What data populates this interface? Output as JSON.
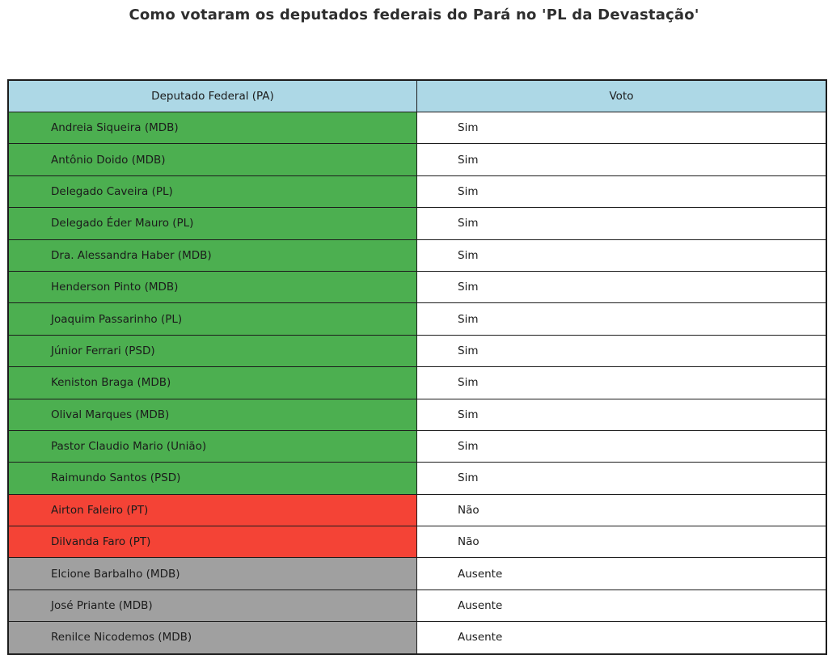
{
  "title": "Como votaram os deputados federais do Pará no 'PL da Devastação'",
  "chart_data": {
    "type": "table",
    "columns": [
      "Deputado Federal (PA)",
      "Voto"
    ],
    "rows": [
      {
        "deputy": "Andreia Siqueira (MDB)",
        "vote": "Sim",
        "status": "sim"
      },
      {
        "deputy": "Antônio Doido (MDB)",
        "vote": "Sim",
        "status": "sim"
      },
      {
        "deputy": "Delegado Caveira (PL)",
        "vote": "Sim",
        "status": "sim"
      },
      {
        "deputy": "Delegado Éder Mauro (PL)",
        "vote": "Sim",
        "status": "sim"
      },
      {
        "deputy": "Dra. Alessandra Haber (MDB)",
        "vote": "Sim",
        "status": "sim"
      },
      {
        "deputy": "Henderson Pinto (MDB)",
        "vote": "Sim",
        "status": "sim"
      },
      {
        "deputy": "Joaquim Passarinho (PL)",
        "vote": "Sim",
        "status": "sim"
      },
      {
        "deputy": "Júnior Ferrari (PSD)",
        "vote": "Sim",
        "status": "sim"
      },
      {
        "deputy": "Keniston Braga (MDB)",
        "vote": "Sim",
        "status": "sim"
      },
      {
        "deputy": "Olival Marques (MDB)",
        "vote": "Sim",
        "status": "sim"
      },
      {
        "deputy": "Pastor Claudio Mario (União)",
        "vote": "Sim",
        "status": "sim"
      },
      {
        "deputy": "Raimundo Santos (PSD)",
        "vote": "Sim",
        "status": "sim"
      },
      {
        "deputy": "Airton Faleiro (PT)",
        "vote": "Não",
        "status": "nao"
      },
      {
        "deputy": "Dilvanda Faro (PT)",
        "vote": "Não",
        "status": "nao"
      },
      {
        "deputy": "Elcione Barbalho (MDB)",
        "vote": "Ausente",
        "status": "ausente"
      },
      {
        "deputy": "José Priante (MDB)",
        "vote": "Ausente",
        "status": "ausente"
      },
      {
        "deputy": "Renilce Nicodemos (MDB)",
        "vote": "Ausente",
        "status": "ausente"
      }
    ],
    "status_colors": {
      "sim": "#4CAF50",
      "nao": "#F44336",
      "ausente": "#A0A0A0"
    },
    "header_color": "#ADD8E6",
    "vote_cell_color": "#FFFFFF",
    "border_color": "#1c1c1c"
  }
}
